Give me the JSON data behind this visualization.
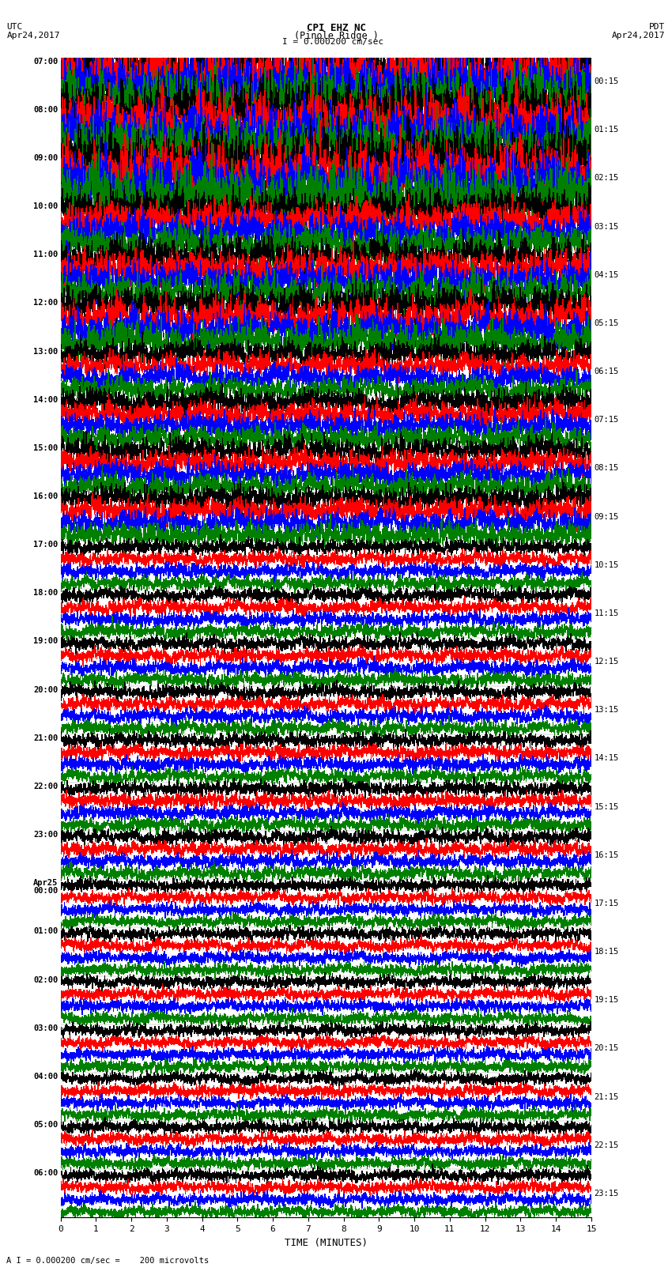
{
  "title_line1": "CPI EHZ NC",
  "title_line2": "(Pinole Ridge )",
  "title_line3": "I = 0.000200 cm/sec",
  "left_header1": "UTC",
  "left_header2": "Apr24,2017",
  "right_header1": "PDT",
  "right_header2": "Apr24,2017",
  "xlabel": "TIME (MINUTES)",
  "footer": "A I = 0.000200 cm/sec =    200 microvolts",
  "xticks": [
    0,
    1,
    2,
    3,
    4,
    5,
    6,
    7,
    8,
    9,
    10,
    11,
    12,
    13,
    14,
    15
  ],
  "left_times": [
    "07:00",
    "08:00",
    "09:00",
    "10:00",
    "11:00",
    "12:00",
    "13:00",
    "14:00",
    "15:00",
    "16:00",
    "17:00",
    "18:00",
    "19:00",
    "20:00",
    "21:00",
    "22:00",
    "23:00",
    "Apr25\n00:00",
    "01:00",
    "02:00",
    "03:00",
    "04:00",
    "05:00",
    "06:00"
  ],
  "right_times": [
    "00:15",
    "01:15",
    "02:15",
    "03:15",
    "04:15",
    "05:15",
    "06:15",
    "07:15",
    "08:15",
    "09:15",
    "10:15",
    "11:15",
    "12:15",
    "13:15",
    "14:15",
    "15:15",
    "16:15",
    "17:15",
    "18:15",
    "19:15",
    "20:15",
    "21:15",
    "22:15",
    "23:15"
  ],
  "trace_colors": [
    "black",
    "red",
    "blue",
    "green"
  ],
  "n_rows": 24,
  "traces_per_row": 4,
  "samples_per_trace": 3000,
  "background_color": "white",
  "fig_width": 8.5,
  "fig_height": 16.13,
  "dpi": 100
}
